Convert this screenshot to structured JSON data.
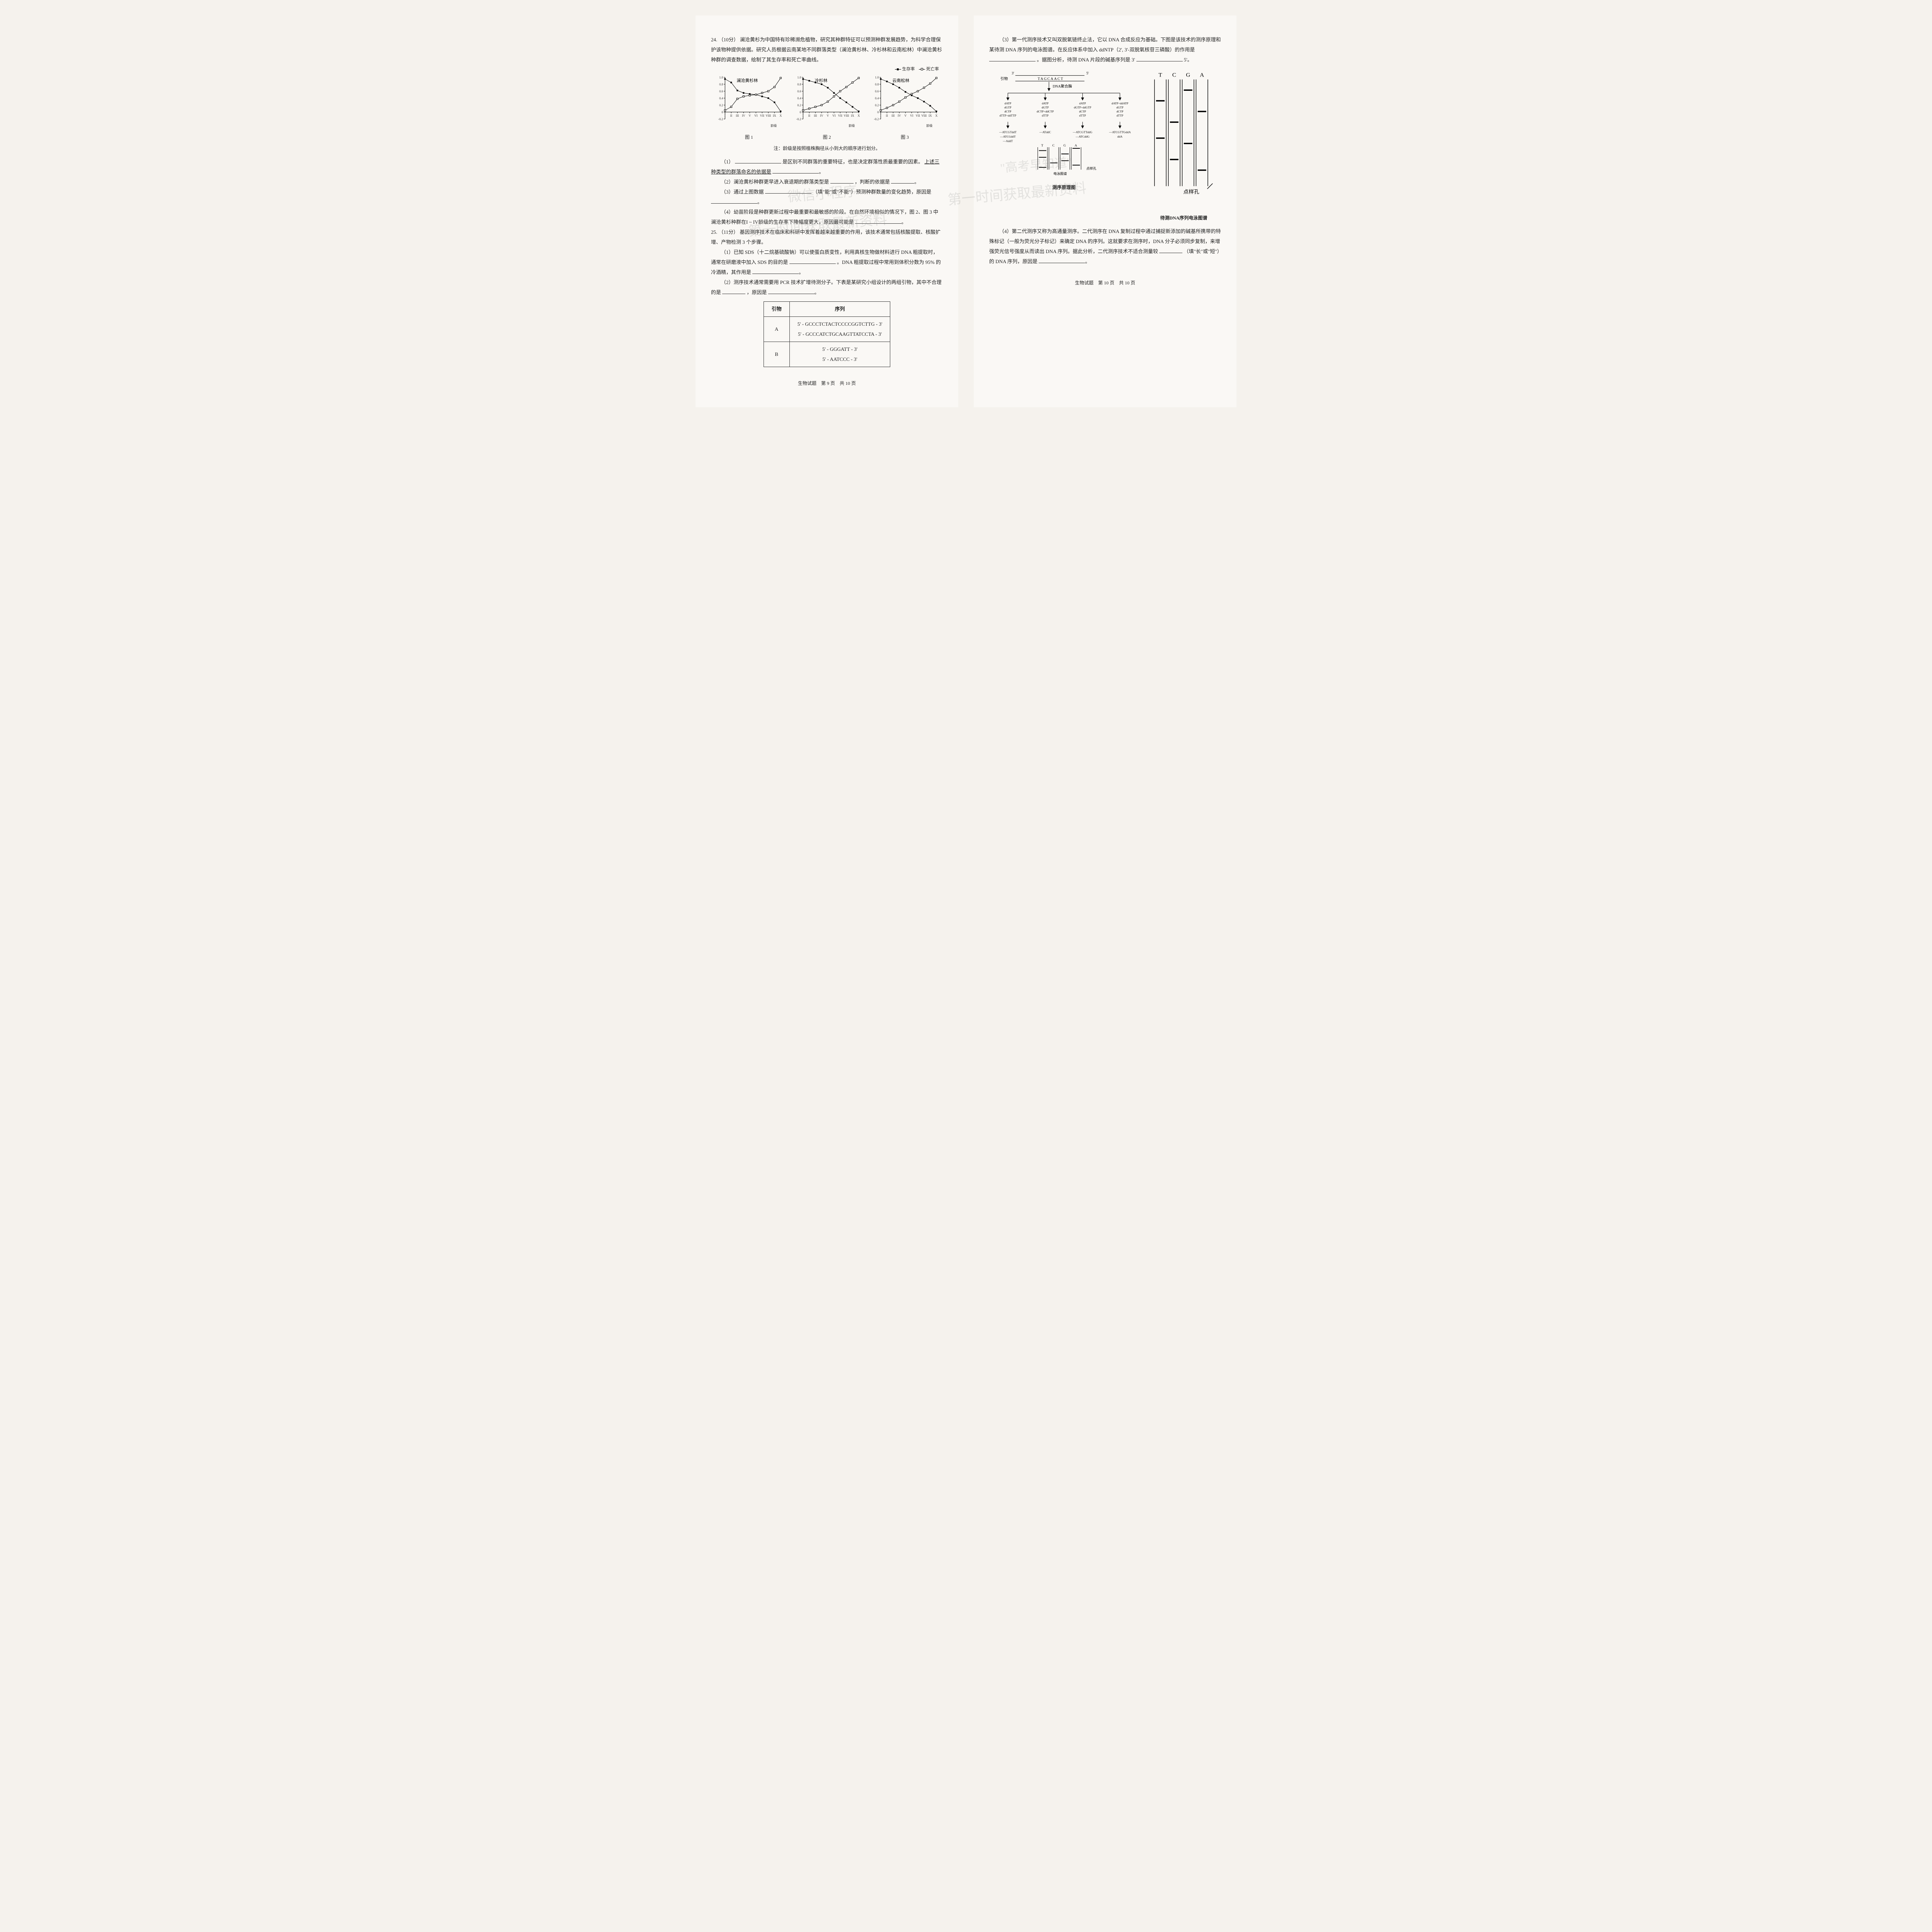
{
  "q24": {
    "number": "24.",
    "points": "（10分）",
    "intro": "澜沧黄杉为中国特有珍稀濒危植物，研究其种群特征可以预测种群发展趋势，为科学合理保护该物种提供依据。研究人员根据云南某地不同群落类型（澜沧黄杉林、冷杉林和云南松林）中澜沧黄杉种群的调查数据，绘制了其生存率和死亡率曲线。",
    "legend": {
      "survival": "生存率",
      "death": "死亡率"
    },
    "charts": [
      {
        "title": "澜沧黄杉林",
        "label": "图 1",
        "xlabel": "龄级",
        "survival": [
          0.95,
          0.85,
          0.62,
          0.55,
          0.52,
          0.5,
          0.45,
          0.4,
          0.28,
          0.02
        ],
        "death": [
          0.05,
          0.15,
          0.38,
          0.45,
          0.48,
          0.5,
          0.55,
          0.6,
          0.72,
          0.98
        ]
      },
      {
        "title": "冷杉林",
        "label": "图 2",
        "xlabel": "龄级",
        "survival": [
          0.95,
          0.9,
          0.85,
          0.8,
          0.7,
          0.55,
          0.4,
          0.28,
          0.15,
          0.02
        ],
        "death": [
          0.05,
          0.1,
          0.15,
          0.2,
          0.3,
          0.45,
          0.6,
          0.72,
          0.85,
          0.98
        ]
      },
      {
        "title": "云南松林",
        "label": "图 3",
        "xlabel": "龄级",
        "survival": [
          0.95,
          0.88,
          0.8,
          0.7,
          0.58,
          0.48,
          0.4,
          0.3,
          0.18,
          0.02
        ],
        "death": [
          0.05,
          0.12,
          0.2,
          0.3,
          0.42,
          0.52,
          0.6,
          0.7,
          0.82,
          0.98
        ]
      }
    ],
    "xticks": [
      "I",
      "II",
      "III",
      "IV",
      "V",
      "VI",
      "VII",
      "VIII",
      "IX",
      "X"
    ],
    "yticks": [
      "-0.2",
      "0",
      "0.2",
      "0.4",
      "0.6",
      "0.8",
      "1.0"
    ],
    "note": "注：龄级是按照植株胸径从小到大的顺序进行划分。",
    "sub1_a": "（1）",
    "sub1_b": "是区别不同群落的重要特征，也是决定群落性质最重要的因素。",
    "sub1_c": "上述三种类型的群落命名的依据是",
    "sub2_a": "（2）澜沧黄杉种群更早进入衰退期的群落类型是",
    "sub2_b": "，判断的依据是",
    "sub3_a": "（3）通过上图数据",
    "sub3_b": "（填\"能\"或\"不能\"）预测种群数量的变化趋势，原因是",
    "sub4_a": "（4）幼苗阶段是种群更新过程中最重要和最敏感的阶段。在自然环境相似的情况下，图 2、图 3 中澜沧黄杉种群在I ~ IV龄级的生存率下降幅度更大，原因最可能是"
  },
  "q25": {
    "number": "25.",
    "points": "（11分）",
    "intro": "基因测序技术在临床和科研中发挥着越来越重要的作用，该技术通常包括核酸提取、核酸扩增、产物检测 3 个步骤。",
    "sub1_a": "（1）已知 SDS（十二烷基硫酸钠）可以使蛋白质变性，利用真核生物做材料进行 DNA 粗提取时，通常在研磨液中加入 SDS 的目的是",
    "sub1_b": "。DNA 粗提取过程中常用到体积分数为 95% 的冷酒精，其作用是",
    "sub2_a": "（2）测序技术通常需要用 PCR 技术扩增待测分子。下表是某研究小组设计的两组引物，其中不合理的是",
    "sub2_b": "，原因是",
    "table": {
      "header": [
        "引物",
        "序列"
      ],
      "rows": [
        {
          "name": "A",
          "seq": [
            "5' - GCCCTCTACTCCCCGGTCTTG - 3'",
            "5' - GCCCATCTGCAAGTTATCCTA - 3'"
          ]
        },
        {
          "name": "B",
          "seq": [
            "5' - GGGATT - 3'",
            "5' - AATCCC - 3'"
          ]
        }
      ]
    },
    "sub3_a": "（3）第一代测序技术又叫双脱氧链终止法，它以 DNA 合成反应为基础。下图是该技术的测序原理和某待测 DNA 序列的电泳图谱。在反应体系中加入 ddNTP（2', 3'-双脱氧核苷三磷酸）的作用是",
    "sub3_b": "。据图分析，待测 DNA 片段的碱基序列是 3'",
    "sub3_c": "5'。",
    "diagram": {
      "primer_label_l": "3'",
      "primer_label_r": "5'",
      "primer_text": "引物",
      "template_seq": "TAGCAACT",
      "enzyme": "DNA聚合酶",
      "lanes": [
        {
          "header": [
            "dATP",
            "dGTP",
            "dCTP",
            "dTTP+ddTTP"
          ],
          "products": [
            "—ATCGTddT",
            "—ATCGddT",
            "—AddT"
          ]
        },
        {
          "header": [
            "dATP",
            "dGTP",
            "dCTP+ddCTP",
            "dTTP"
          ],
          "products": [
            "—ATddC",
            ""
          ]
        },
        {
          "header": [
            "dATP",
            "dGTP+ddGTP",
            "dCTP",
            "dTTP"
          ],
          "products": [
            "—ATCGTTddG",
            "—ATCddG"
          ]
        },
        {
          "header": [
            "dATP+ddATP",
            "dGTP",
            "dCTP",
            "dTTP"
          ],
          "products": [
            "—ATCGTTGddA",
            "ddA"
          ]
        }
      ],
      "gel_header": [
        "T",
        "C",
        "G",
        "A"
      ],
      "well_label": "点样孔",
      "left_label": "测序原理图",
      "right_label": "待测DNA序列电泳图谱"
    },
    "sub4_a": "（4）第二代测序又称为高通量测序。二代测序在 DNA 复制过程中通过捕捉新添加的碱基所携带的特殊标记（一般为荧光分子标记）来确定 DNA 的序列。这就要求在测序时，DNA 分子必须同步复制，来增强荧光信号强度从而读出 DNA 序列。据此分析，二代测序技术不适合测量较",
    "sub4_b": "（填\"长\"或\"短\"）的 DNA 序列，原因是"
  },
  "footer": {
    "left": "生物试题　第 9 页　共 10 页",
    "right": "生物试题　第 10 页　共 10 页"
  },
  "watermarks": {
    "a": "\"高考早知道\"",
    "b": "第一时间获取最新资料",
    "c": "微信小程序"
  },
  "colors": {
    "line": "#000000",
    "bg": "#faf8f5"
  }
}
